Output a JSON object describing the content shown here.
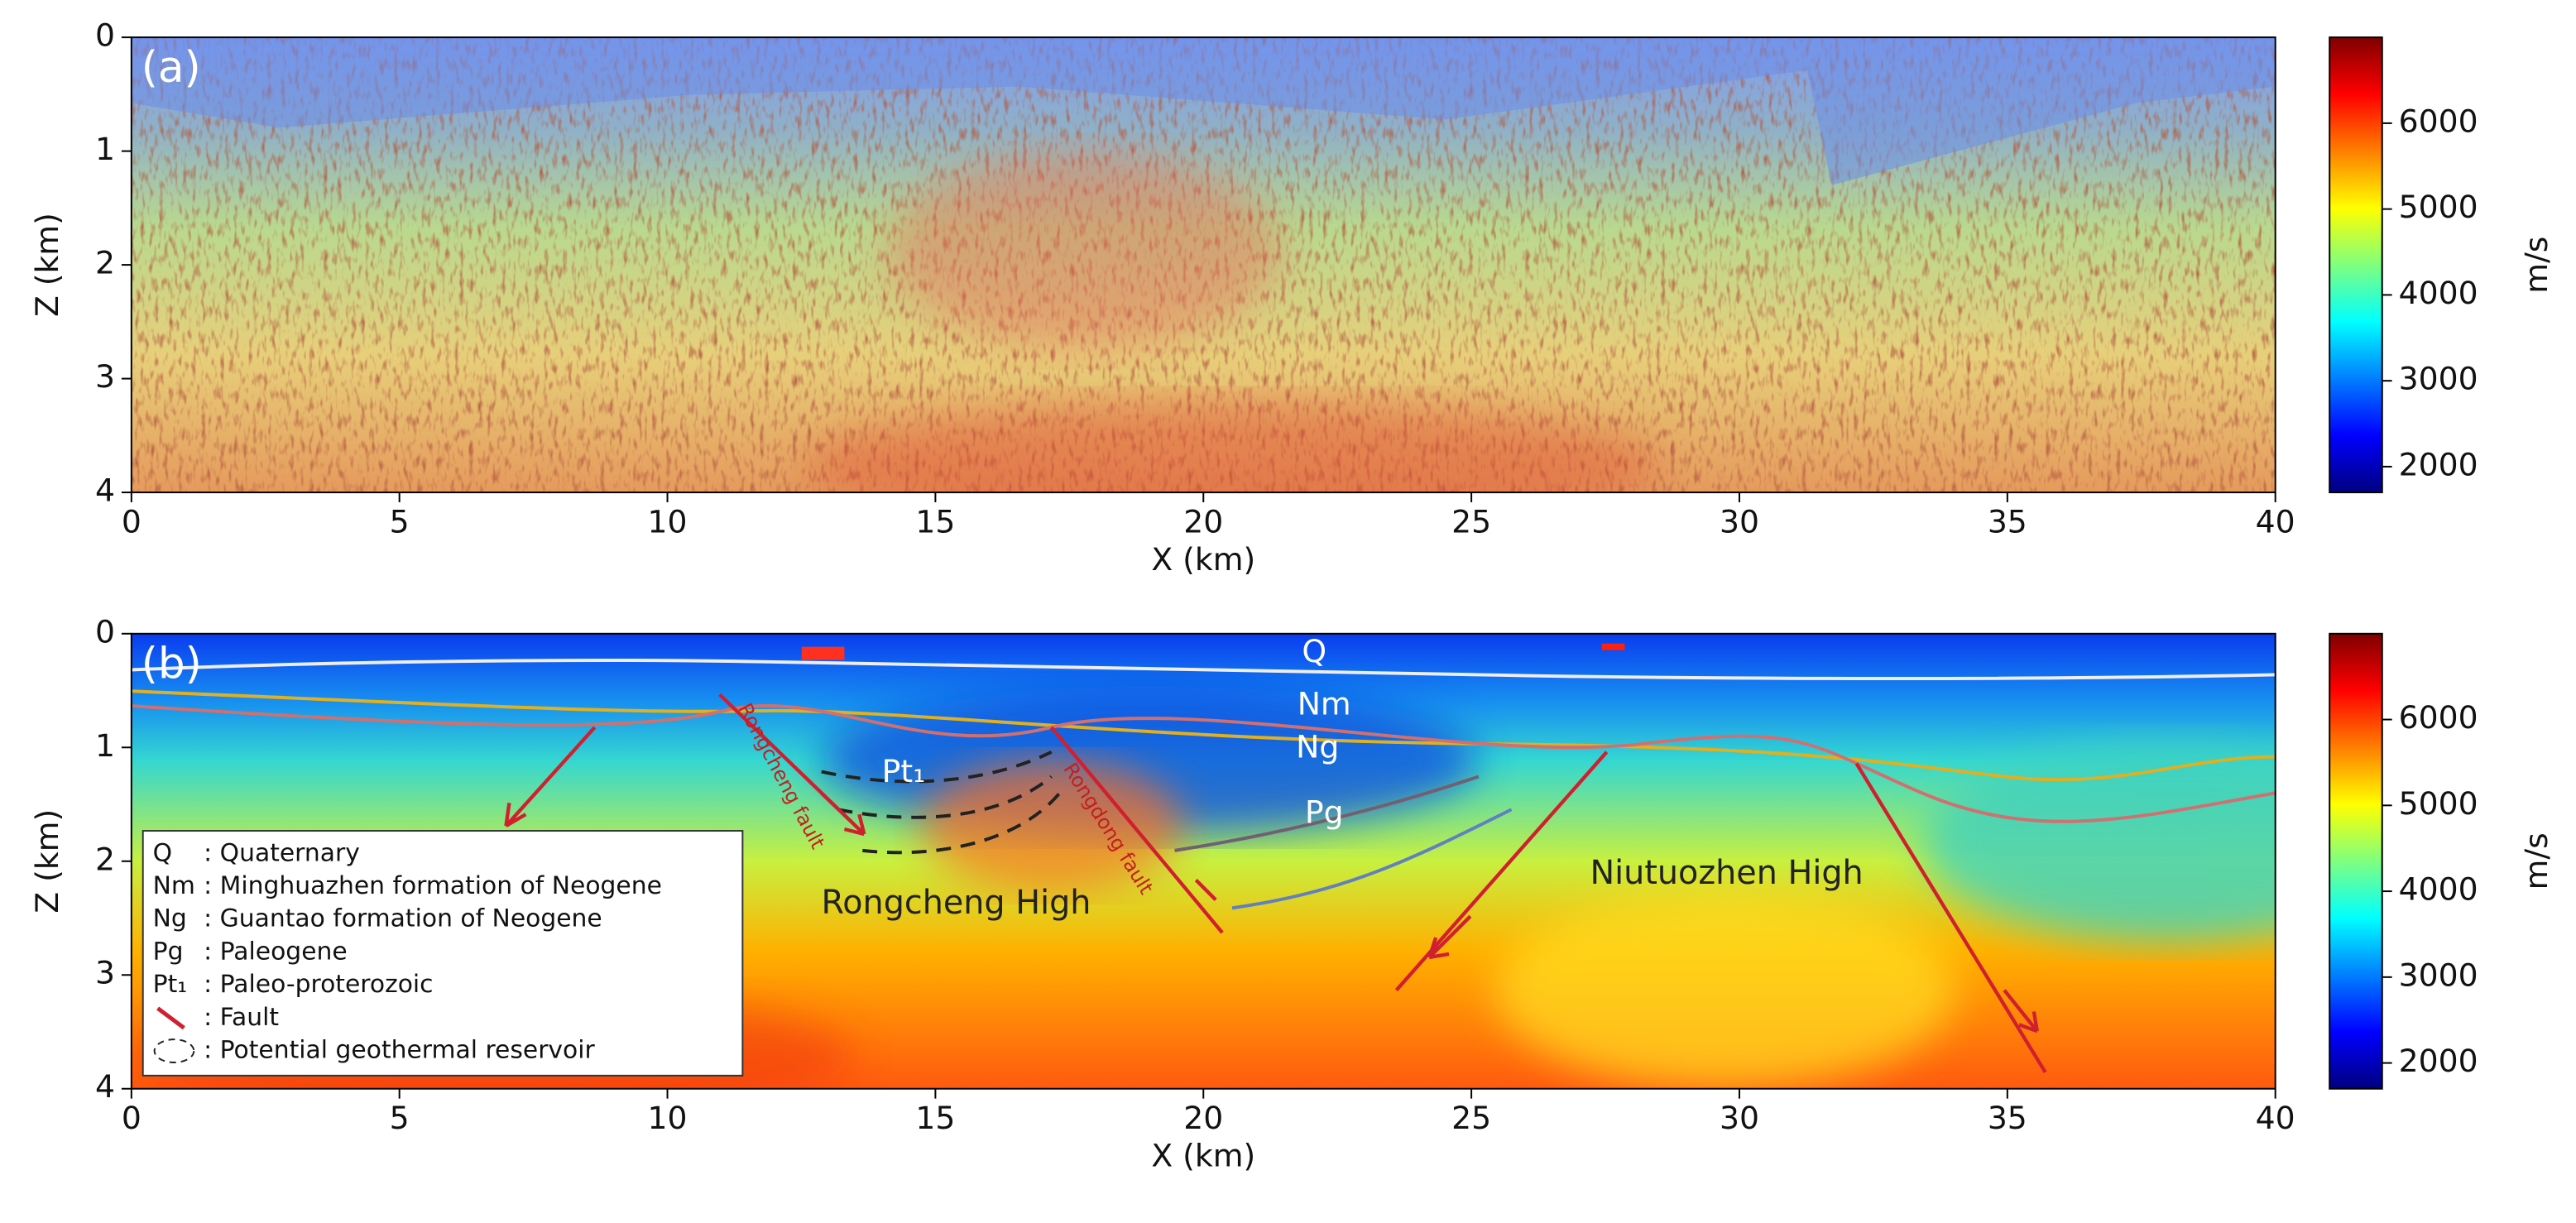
{
  "chart_data": [
    {
      "type": "image",
      "title": "(a)",
      "xlabel": "X (km)",
      "ylabel": "Z (km)",
      "xlim": [
        0,
        40
      ],
      "ylim": [
        4,
        0
      ],
      "xticks": [
        0,
        5,
        10,
        15,
        20,
        25,
        30,
        35,
        40
      ],
      "yticks": [
        0,
        1,
        2,
        3,
        4
      ],
      "colorbar": {
        "label": "m/s",
        "lim": [
          1700,
          7000
        ],
        "ticks": [
          2000,
          3000,
          4000,
          5000,
          6000
        ],
        "colormap": "jet"
      }
    },
    {
      "type": "image",
      "title": "(b)",
      "xlabel": "X (km)",
      "ylabel": "Z (km)",
      "xlim": [
        0,
        40
      ],
      "ylim": [
        4,
        0
      ],
      "xticks": [
        0,
        5,
        10,
        15,
        20,
        25,
        30,
        35,
        40
      ],
      "yticks": [
        0,
        1,
        2,
        3,
        4
      ],
      "colorbar": {
        "label": "m/s",
        "lim": [
          1700,
          7000
        ],
        "ticks": [
          2000,
          3000,
          4000,
          5000,
          6000
        ],
        "colormap": "jet"
      },
      "annotations": [
        "Q",
        "Nm",
        "Ng",
        "Pg",
        "Pt₁",
        "Rongcheng High",
        "Niutuozhen High",
        "Rongcheng fault",
        "Rongdong fault"
      ],
      "legend": [
        {
          "key": "Q",
          "text": ": Quaternary"
        },
        {
          "key": "Nm",
          "text": ": Minghuazhen formation of Neogene"
        },
        {
          "key": "Ng",
          "text": ": Guantao formation of Neogene"
        },
        {
          "key": "Pg",
          "text": ": Paleogene"
        },
        {
          "key": "Pt₁",
          "text": ": Paleo-proterozoic"
        },
        {
          "text": ": Fault"
        },
        {
          "text": ": Potential geothermal reservoir"
        }
      ]
    }
  ]
}
